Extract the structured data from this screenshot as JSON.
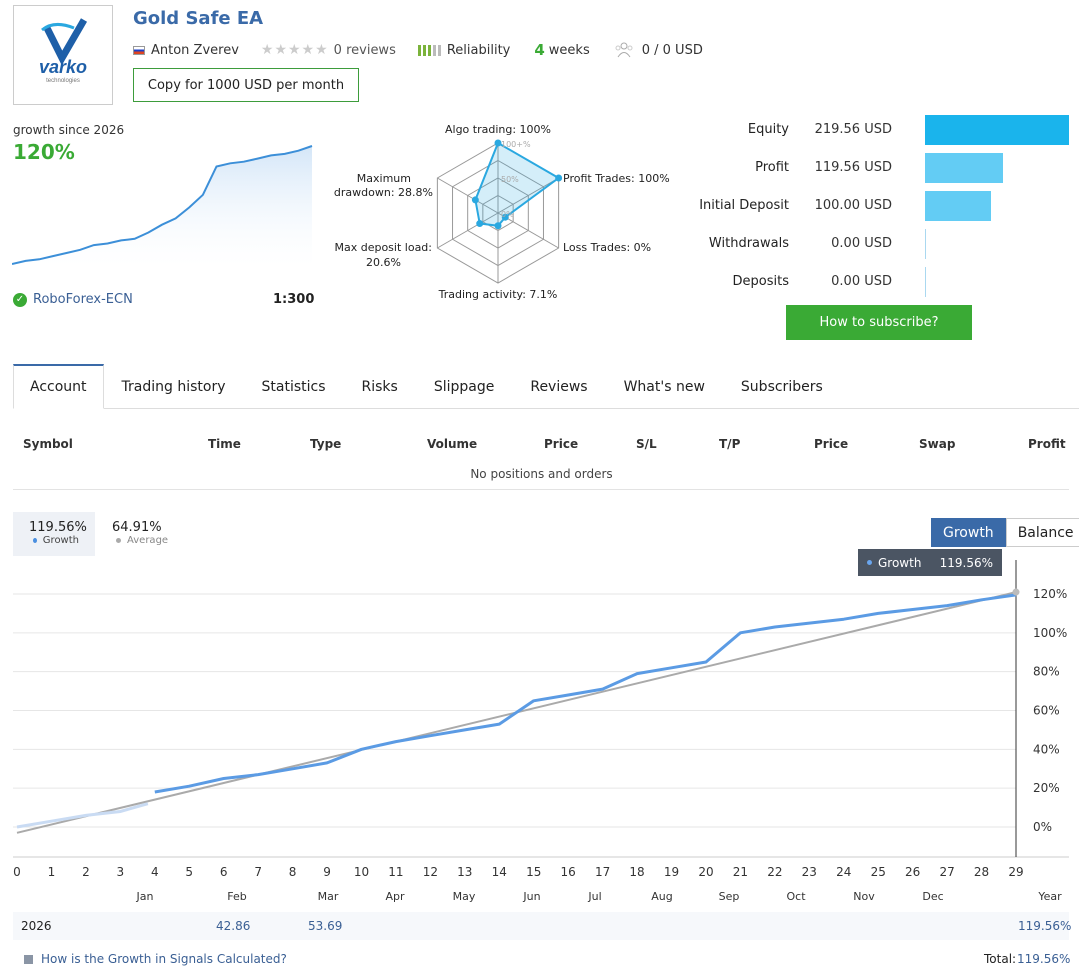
{
  "header": {
    "title": "Gold Safe EA",
    "logo_text": "varko",
    "logo_subtext": "technologies",
    "author": "Anton Zverev",
    "reviews": "0 reviews",
    "rating_stars": 0,
    "reliability_label": "Reliability",
    "weeks_num": "4",
    "weeks_label": "weeks",
    "subscribers": "0 / 0 USD",
    "copy_button": "Copy for 1000 USD per month"
  },
  "summary": {
    "growth_since": "growth since 2026",
    "growth_value": "120%",
    "broker": "RoboForex-ECN",
    "leverage": "1:300",
    "sparkline": [
      0,
      2,
      3,
      5,
      7,
      9,
      12,
      13,
      15,
      16,
      20,
      25,
      29,
      36,
      44,
      62,
      64,
      65,
      67,
      69,
      70,
      72,
      75
    ]
  },
  "radar": {
    "algo_trading": "Algo trading: 100%",
    "profit_trades": "Profit Trades: 100%",
    "loss_trades": "Loss Trades: 0%",
    "trading_activity": "Trading activity: 7.1%",
    "max_deposit_load_1": "Max deposit load:",
    "max_deposit_load_2": "20.6%",
    "max_drawdown_1": "Maximum",
    "max_drawdown_2": "drawdown: 28.8%",
    "grid_100": "100+%",
    "grid_50": "50%",
    "grid_0": "0%",
    "values": [
      100,
      100,
      0,
      7.1,
      20.6,
      28.8
    ]
  },
  "account": {
    "rows": [
      {
        "label": "Equity",
        "value": "219.56 USD",
        "amount": 219.56,
        "color": "#1ab4ec"
      },
      {
        "label": "Profit",
        "value": "119.56 USD",
        "amount": 119.56,
        "color": "#63ccf4"
      },
      {
        "label": "Initial Deposit",
        "value": "100.00 USD",
        "amount": 100.0,
        "color": "#63ccf4"
      },
      {
        "label": "Withdrawals",
        "value": "0.00 USD",
        "amount": 0,
        "color": "#63ccf4"
      },
      {
        "label": "Deposits",
        "value": "0.00 USD",
        "amount": 0,
        "color": "#63ccf4"
      }
    ],
    "subscribe_button": "How to subscribe?"
  },
  "tabs": [
    "Account",
    "Trading history",
    "Statistics",
    "Risks",
    "Slippage",
    "Reviews",
    "What's new",
    "Subscribers"
  ],
  "positions": {
    "columns": [
      "Symbol",
      "Time",
      "Type",
      "Volume",
      "Price",
      "S/L",
      "T/P",
      "Price",
      "Swap",
      "Profit"
    ],
    "empty_text": "No positions and orders"
  },
  "chart_stats": {
    "growth_value": "119.56%",
    "growth_label": "Growth",
    "average_value": "64.91%",
    "average_label": "Average",
    "growth_color": "#4a8fe0",
    "average_color": "#aaaaaa"
  },
  "chart_toggle": {
    "growth": "Growth",
    "balance": "Balance"
  },
  "tooltip": {
    "label": "Growth",
    "value": "119.56%"
  },
  "chart_data": {
    "type": "line",
    "x_ticks": [
      "0",
      "1",
      "2",
      "3",
      "4",
      "5",
      "6",
      "7",
      "8",
      "9",
      "10",
      "11",
      "12",
      "13",
      "14",
      "15",
      "16",
      "17",
      "18",
      "19",
      "20",
      "21",
      "22",
      "23",
      "24",
      "25",
      "26",
      "27",
      "28",
      "29"
    ],
    "months": [
      "Jan",
      "Feb",
      "Mar",
      "Apr",
      "May",
      "Jun",
      "Jul",
      "Aug",
      "Sep",
      "Oct",
      "Nov",
      "Dec",
      "Year"
    ],
    "y_ticks": [
      "0%",
      "20%",
      "40%",
      "60%",
      "80%",
      "100%",
      "120%"
    ],
    "ylim": [
      0,
      120
    ],
    "series": [
      {
        "name": "Growth",
        "color": "#4a8fe0",
        "x": [
          0,
          1,
          2,
          3,
          3.8,
          4,
          5,
          6,
          7,
          8,
          9,
          10,
          11,
          12,
          13,
          14,
          15,
          16,
          17,
          18,
          19,
          20,
          21,
          22,
          23,
          24,
          25,
          26,
          27,
          28,
          29
        ],
        "y": [
          0,
          3,
          6,
          8,
          12,
          18,
          21,
          25,
          27,
          30,
          33,
          40,
          44,
          47,
          50,
          53,
          65,
          68,
          71,
          79,
          82,
          85,
          100,
          103,
          105,
          107,
          110,
          112,
          114,
          117,
          119.56
        ]
      },
      {
        "name": "Average",
        "color": "#aaaaaa",
        "x": [
          0,
          29
        ],
        "y": [
          -3,
          121
        ]
      }
    ]
  },
  "yearly": {
    "year": "2026",
    "feb": "42.86",
    "mar": "53.69",
    "total_year": "119.56%"
  },
  "footer": {
    "question": "How is the Growth in Signals Calculated?",
    "total_label": "Total:",
    "total_value": "119.56%"
  }
}
